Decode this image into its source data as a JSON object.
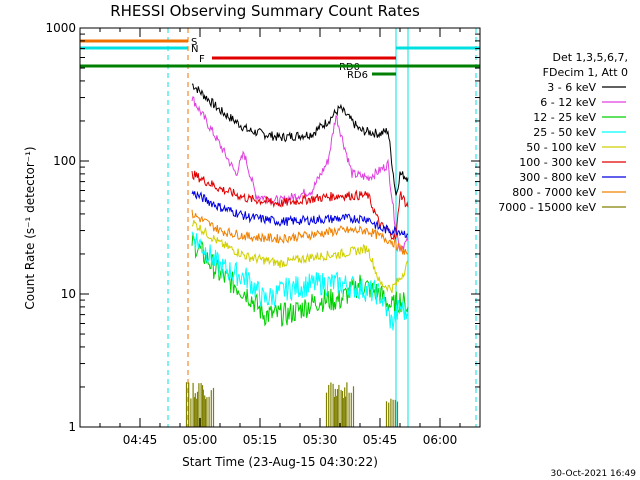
{
  "chart_data": {
    "type": "line",
    "title": "RHESSI Observing Summary Count Rates",
    "xlabel": "Start Time (23-Aug-15 04:30:22)",
    "ylabel": "Count Rate (s⁻¹ detector⁻¹)",
    "y_scale": "log",
    "ylim": [
      1,
      1000
    ],
    "xlim": [
      "04:30",
      "06:10"
    ],
    "x_ticks": [
      "04:45",
      "05:00",
      "05:15",
      "05:30",
      "05:45",
      "06:00"
    ],
    "y_ticks": [
      "1",
      "10",
      "100",
      "1000"
    ],
    "date_stamp": "30-Oct-2021 16:49",
    "legend_header": [
      "Det 1,3,5,6,7,",
      "FDecim 1, Att 0"
    ],
    "grid": false,
    "series": [
      {
        "name": "3 - 6 keV",
        "color": "#000000",
        "x": [
          "04:58",
          "05:05",
          "05:12",
          "05:20",
          "05:28",
          "05:32",
          "05:35",
          "05:40",
          "05:45",
          "05:47",
          "05:49",
          "05:50",
          "05:52"
        ],
        "y": [
          380,
          240,
          170,
          150,
          160,
          200,
          250,
          170,
          160,
          170,
          55,
          80,
          75
        ]
      },
      {
        "name": "6 - 12 keV",
        "color": "#e040e0",
        "x": [
          "04:58",
          "05:04",
          "05:09",
          "05:11",
          "05:14",
          "05:20",
          "05:28",
          "05:32",
          "05:34",
          "05:38",
          "05:42",
          "05:45",
          "05:47",
          "05:49",
          "05:50",
          "05:52"
        ],
        "y": [
          300,
          150,
          80,
          115,
          55,
          50,
          60,
          100,
          220,
          80,
          75,
          85,
          95,
          30,
          22,
          25
        ]
      },
      {
        "name": "12 - 25 keV",
        "color": "#00d000",
        "x": [
          "04:58",
          "05:05",
          "05:12",
          "05:16",
          "05:22",
          "05:30",
          "05:35",
          "05:40",
          "05:45",
          "05:48",
          "05:50",
          "05:52"
        ],
        "y": [
          25,
          14,
          10,
          7,
          7,
          9,
          9,
          12,
          10,
          8,
          9,
          8
        ]
      },
      {
        "name": "25 - 50 keV",
        "color": "#00ffff",
        "x": [
          "04:58",
          "05:05",
          "05:12",
          "05:16",
          "05:22",
          "05:30",
          "05:35",
          "05:40",
          "05:45",
          "05:48",
          "05:50",
          "05:52"
        ],
        "y": [
          28,
          16,
          13,
          9,
          11,
          12,
          12,
          11,
          10,
          6,
          8,
          7
        ]
      },
      {
        "name": "50 - 100 keV",
        "color": "#d0d000",
        "x": [
          "04:58",
          "05:05",
          "05:12",
          "05:20",
          "05:28",
          "05:35",
          "05:42",
          "05:45",
          "05:48",
          "05:50",
          "05:52"
        ],
        "y": [
          35,
          24,
          19,
          17,
          19,
          20,
          22,
          12,
          11,
          13,
          17
        ]
      },
      {
        "name": "100 - 300 keV",
        "color": "#e00000",
        "x": [
          "04:58",
          "05:05",
          "05:12",
          "05:20",
          "05:28",
          "05:35",
          "05:42",
          "05:45",
          "05:47",
          "05:49",
          "05:50",
          "05:52"
        ],
        "y": [
          80,
          62,
          52,
          48,
          52,
          55,
          55,
          33,
          30,
          26,
          58,
          45
        ]
      },
      {
        "name": "300 - 800 keV",
        "color": "#0000e0",
        "x": [
          "04:58",
          "05:05",
          "05:12",
          "05:20",
          "05:28",
          "05:35",
          "05:42",
          "05:45",
          "05:48",
          "05:50",
          "05:52"
        ],
        "y": [
          58,
          45,
          38,
          35,
          36,
          37,
          37,
          31,
          30,
          30,
          28
        ]
      },
      {
        "name": "800 - 7000 keV",
        "color": "#f08000",
        "x": [
          "04:58",
          "05:05",
          "05:12",
          "05:20",
          "05:28",
          "05:35",
          "05:42",
          "05:45",
          "05:48",
          "05:50",
          "05:52"
        ],
        "y": [
          40,
          30,
          27,
          26,
          28,
          30,
          30,
          27,
          25,
          22,
          20
        ]
      },
      {
        "name": "7000 - 15000 keV",
        "color": "#808000",
        "style": "bursts",
        "x": [
          "04:58",
          "05:00",
          "05:02",
          "05:33",
          "05:35",
          "05:37",
          "05:48"
        ],
        "y": [
          1.9,
          1.9,
          1.9,
          1.9,
          1.9,
          1.9,
          1.5
        ]
      }
    ],
    "flag_bars": [
      {
        "label": "S",
        "color": "#f07000",
        "start": "04:30",
        "end": "04:57"
      },
      {
        "label": "N",
        "color": "#00e0e0",
        "start": "04:30",
        "end": "04:57"
      },
      {
        "label": "",
        "color": "#00e0e0",
        "start": "05:49",
        "end": "06:10"
      },
      {
        "label": "F",
        "color": "#e00000",
        "start": "05:03",
        "end": "05:49"
      },
      {
        "label": "RD0",
        "color": "#008000",
        "start": "05:41",
        "end": "05:49"
      },
      {
        "label": "RD6",
        "color": "#008000",
        "start": "05:43",
        "end": "05:49"
      },
      {
        "label": "",
        "color": "#008000",
        "start": "04:30",
        "end": "06:10"
      }
    ],
    "vertical_lines": [
      {
        "time": "04:30",
        "color": "#00e0e0",
        "style": "solid"
      },
      {
        "time": "04:52",
        "color": "#00e0e0",
        "style": "dashed"
      },
      {
        "time": "04:57",
        "color": "#f07000",
        "style": "dashed"
      },
      {
        "time": "05:49",
        "color": "#00e0e0",
        "style": "solid"
      },
      {
        "time": "05:52",
        "color": "#00e0e0",
        "style": "solid"
      },
      {
        "time": "06:09",
        "color": "#00e0e0",
        "style": "dashed"
      }
    ]
  }
}
